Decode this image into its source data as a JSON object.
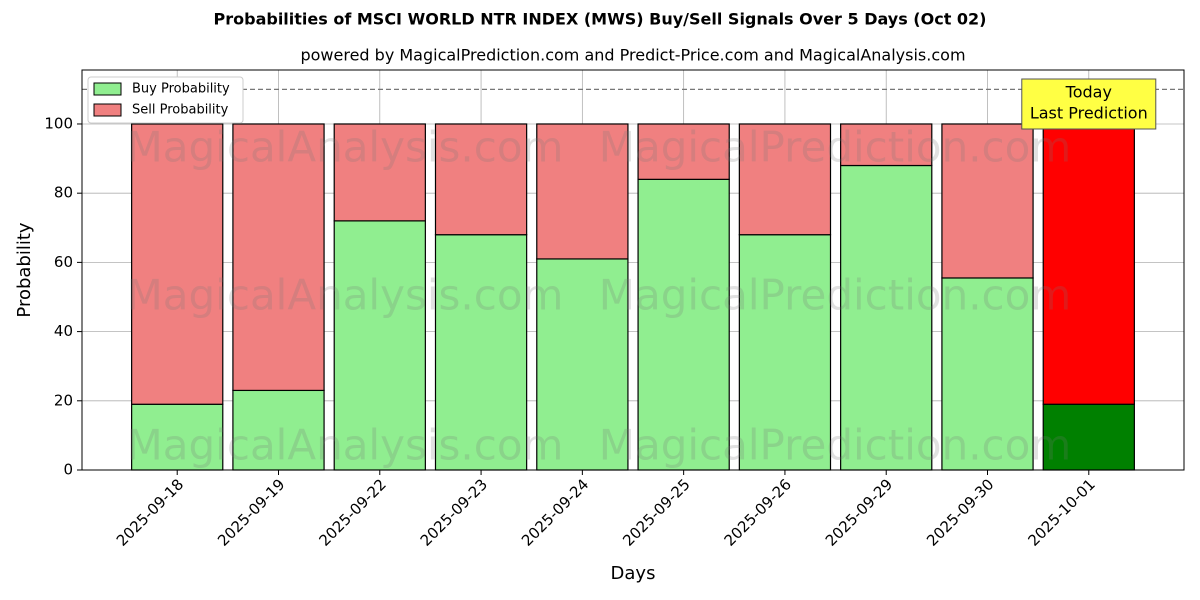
{
  "chart_data": {
    "type": "stacked_bar",
    "title": "Probabilities of MSCI WORLD NTR INDEX (MWS) Buy/Sell Signals Over 5 Days (Oct 02)",
    "subtitle": "powered by MagicalPrediction.com and Predict-Price.com and MagicalAnalysis.com",
    "x_label": "Days",
    "y_label": "Probability",
    "categories": [
      "2025-09-18",
      "2025-09-19",
      "2025-09-22",
      "2025-09-23",
      "2025-09-24",
      "2025-09-25",
      "2025-09-26",
      "2025-09-29",
      "2025-09-30",
      "2025-10-01"
    ],
    "series": [
      {
        "name": "Buy Probability",
        "color": "#90ee90",
        "last_color": "#008000",
        "values": [
          19,
          23,
          72,
          68,
          61,
          84,
          68,
          88,
          55.5,
          19
        ]
      },
      {
        "name": "Sell Probability",
        "color": "#f08080",
        "last_color": "#ff0000",
        "values": [
          81,
          77,
          28,
          32,
          39,
          16,
          32,
          12,
          44.5,
          81
        ]
      }
    ],
    "ylim": [
      0,
      115.6
    ],
    "yticks": [
      0,
      20,
      40,
      60,
      80,
      100
    ],
    "grid": true,
    "legend": "upper left",
    "reference_line": 110,
    "annotation": [
      "Today",
      "Last Prediction"
    ],
    "watermarks": [
      "MagicalAnalysis.com",
      "MagicalPrediction.com"
    ]
  }
}
